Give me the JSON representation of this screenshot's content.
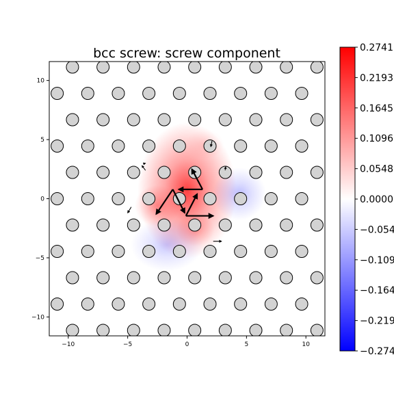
{
  "chart_data": {
    "type": "scatter",
    "title": "bcc screw: screw component",
    "xlabel": "",
    "ylabel": "",
    "xlim": [
      -11.6,
      11.6
    ],
    "ylim": [
      -11.6,
      11.6
    ],
    "xticks": [
      -10,
      -5,
      0,
      5,
      10
    ],
    "yticks": [
      -10,
      -5,
      0,
      5,
      10
    ],
    "xtick_labels": [
      "−10",
      "−5",
      "0",
      "5",
      "10"
    ],
    "ytick_labels": [
      "−10",
      "−5",
      "0",
      "5",
      "10"
    ],
    "colorbar": {
      "cmap": "bwr",
      "min": -0.2741,
      "max": 0.2741,
      "ticks": [
        0.2741,
        0.2193,
        0.1645,
        0.1096,
        0.0548,
        0.0,
        -0.0548,
        -0.1096,
        -0.1645,
        -0.2193,
        -0.2741
      ],
      "tick_labels": [
        "0.2741",
        "0.2193",
        "0.1645",
        "0.1096",
        "0.0548",
        "0.0000",
        "−0.0548",
        "−0.1096",
        "−0.1645",
        "−0.2193",
        "−0.2741"
      ]
    },
    "lattice": {
      "a": 2.572,
      "row_spacing": 2.227,
      "row_offset_step": 1.286,
      "marker_color": "#d3d3d3"
    },
    "field": [
      {
        "x": 0.0,
        "y": 0.7,
        "sx": 2.6,
        "sy": 3.6,
        "value": 0.2
      },
      {
        "x": -2.5,
        "y": -0.6,
        "sx": 1.2,
        "sy": 1.1,
        "value": 0.08
      },
      {
        "x": 0.7,
        "y": -2.6,
        "sx": 1.0,
        "sy": 0.9,
        "value": 0.06
      },
      {
        "x": 4.4,
        "y": 0.4,
        "sx": 1.4,
        "sy": 1.4,
        "value": -0.06
      },
      {
        "x": -1.7,
        "y": -3.9,
        "sx": 1.9,
        "sy": 1.4,
        "value": -0.05
      },
      {
        "x": 1.5,
        "y": 4.6,
        "sx": 1.0,
        "sy": 0.8,
        "value": 0.025
      }
    ],
    "arrows": [
      {
        "x1": -1.2,
        "y1": 0.79,
        "x2": -2.6,
        "y2": -1.3,
        "w": 2.2
      },
      {
        "x1": -1.2,
        "y1": 0.79,
        "x2": -0.2,
        "y2": -1.2,
        "w": 2.2
      },
      {
        "x1": 1.3,
        "y1": 0.79,
        "x2": -0.7,
        "y2": 0.79,
        "w": 2.2
      },
      {
        "x1": 1.3,
        "y1": 0.79,
        "x2": 0.4,
        "y2": 2.5,
        "w": 2.2
      },
      {
        "x1": -0.1,
        "y1": -1.45,
        "x2": 0.85,
        "y2": 0.4,
        "w": 2.2
      },
      {
        "x1": -0.1,
        "y1": -1.45,
        "x2": 2.2,
        "y2": -1.45,
        "w": 2.2
      },
      {
        "x1": 2.1,
        "y1": 4.9,
        "x2": 2.0,
        "y2": 4.4,
        "w": 1.1
      },
      {
        "x1": -4.7,
        "y1": -0.7,
        "x2": -5.0,
        "y2": -1.2,
        "w": 1.1
      },
      {
        "x1": 2.2,
        "y1": -3.6,
        "x2": 2.9,
        "y2": -3.6,
        "w": 1.1
      },
      {
        "x1": -3.5,
        "y1": 2.4,
        "x2": -3.8,
        "y2": 2.8,
        "w": 1.0
      },
      {
        "x1": -3.7,
        "y1": 2.95,
        "x2": -3.5,
        "y2": 3.0,
        "w": 1.0
      },
      {
        "x1": 3.2,
        "y1": 2.4,
        "x2": 3.25,
        "y2": 2.7,
        "w": 1.0
      }
    ]
  }
}
